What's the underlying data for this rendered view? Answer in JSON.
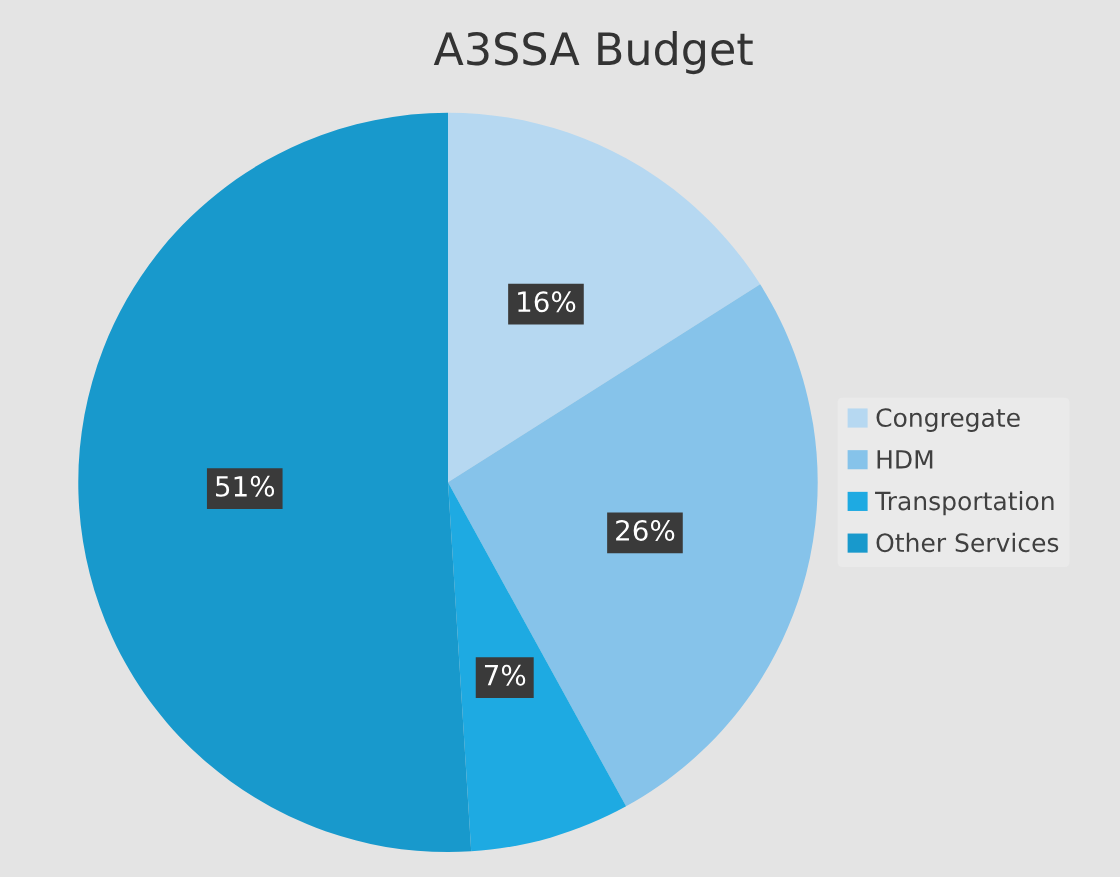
{
  "chart_data": {
    "type": "pie",
    "title": "A3SSA Budget",
    "categories": [
      "Congregate",
      "HDM",
      "Transportation",
      "Other Services"
    ],
    "values": [
      16,
      26,
      7,
      51
    ],
    "colors": [
      "#b6d8f1",
      "#86c3ea",
      "#1eaae2",
      "#1899cc"
    ],
    "value_labels": [
      "16%",
      "26%",
      "7%",
      "51%"
    ],
    "legend": "right"
  }
}
